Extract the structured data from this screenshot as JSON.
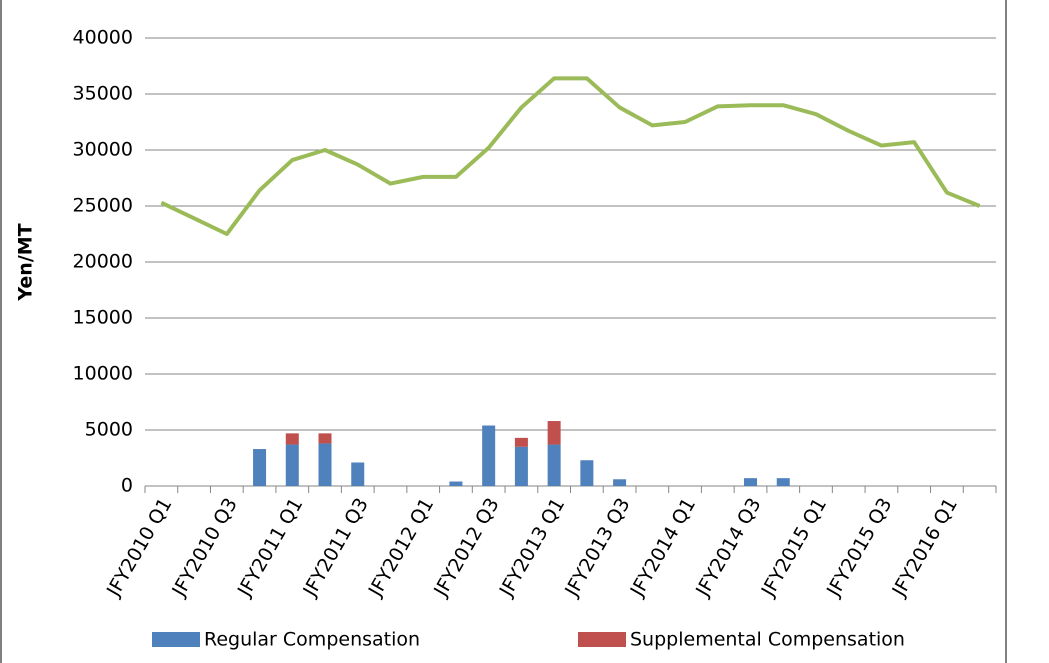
{
  "chart_data": {
    "type": "bar",
    "stacked": true,
    "y_label": "Yen/MT",
    "categories": [
      "JFY2010 Q1",
      null,
      "JFY2010 Q3",
      null,
      "JFY2011 Q1",
      null,
      "JFY2011 Q3",
      null,
      "JFY2012 Q1",
      null,
      "JFY2012 Q3",
      null,
      "JFY2013 Q1",
      null,
      "JFY2013 Q3",
      null,
      "JFY2014 Q1",
      null,
      "JFY2014 Q3",
      null,
      "JFY2015 Q1",
      null,
      "JFY2015 Q3",
      null,
      "JFY2016 Q1",
      null
    ],
    "series": [
      {
        "name": "Regular Compensation",
        "color": "#4f81bd",
        "values": [
          0,
          0,
          0,
          3300,
          3700,
          3800,
          2100,
          0,
          0,
          400,
          5400,
          3500,
          3700,
          2300,
          600,
          0,
          0,
          0,
          700,
          700,
          0,
          0,
          0,
          0,
          0,
          0
        ]
      },
      {
        "name": "Supplemental Compensation",
        "color": "#c0504d",
        "values": [
          0,
          0,
          0,
          0,
          1000,
          900,
          0,
          0,
          0,
          0,
          0,
          800,
          2100,
          0,
          0,
          0,
          0,
          0,
          0,
          0,
          0,
          0,
          0,
          0,
          0,
          0
        ]
      },
      {
        "type": "line",
        "color": "#9bbb59",
        "values": [
          25300,
          23900,
          22500,
          26400,
          29100,
          30000,
          28700,
          27000,
          27600,
          27600,
          30200,
          33800,
          36400,
          36400,
          33800,
          32200,
          32500,
          33900,
          34000,
          34000,
          33200,
          31700,
          30400,
          30700,
          26200,
          25000
        ]
      }
    ],
    "ylim": [
      0,
      40000
    ],
    "yticks": [
      0,
      5000,
      10000,
      15000,
      20000,
      25000,
      30000,
      35000,
      40000
    ],
    "grid": true,
    "legend": "bottom"
  }
}
